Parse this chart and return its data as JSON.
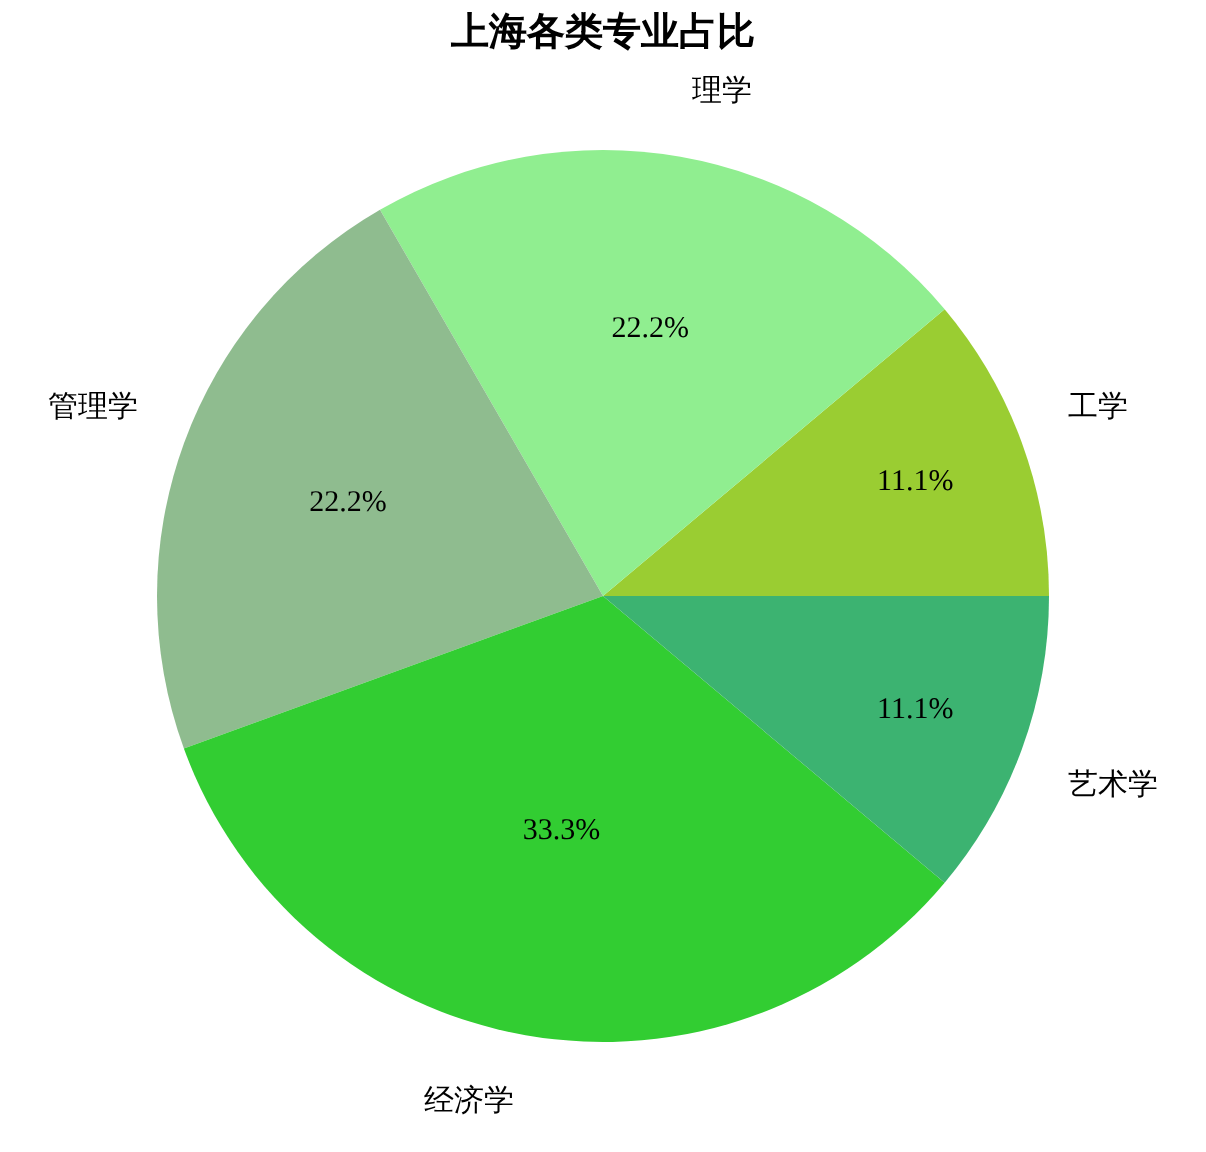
{
  "chart_data": {
    "type": "pie",
    "title": "上海各类专业占比",
    "categories": [
      "工学",
      "理学",
      "管理学",
      "经济学",
      "艺术学"
    ],
    "values": [
      11.1,
      22.2,
      22.2,
      33.3,
      11.1
    ],
    "value_labels": [
      "11.1%",
      "22.2%",
      "22.2%",
      "33.3%",
      "11.1%"
    ],
    "colors": [
      "#9acd32",
      "#90ee90",
      "#8fbc8f",
      "#32cd32",
      "#3cb371"
    ]
  }
}
